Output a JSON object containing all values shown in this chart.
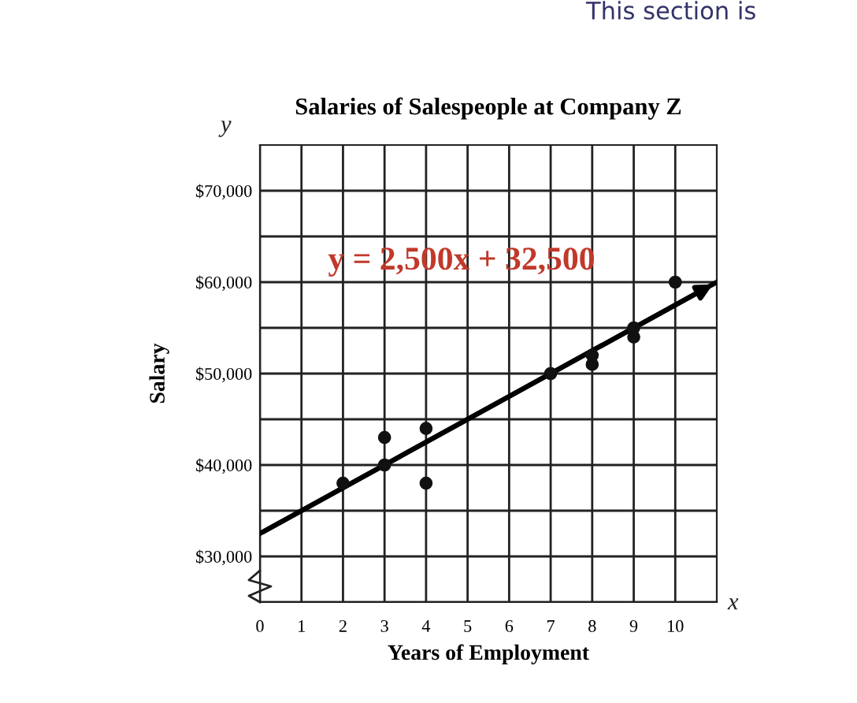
{
  "chart_data": {
    "type": "scatter",
    "title": "Salaries of Salespeople at Company Z",
    "xlabel": "Years of Employment",
    "ylabel": "Salary",
    "annotations": [
      "y = 2,500x + 32,500",
      "y",
      "x",
      "This section is"
    ],
    "series": [
      {
        "color": "#111111",
        "x": [
          2,
          3,
          3,
          4,
          4,
          7,
          8,
          8,
          9,
          9,
          10
        ],
        "values": [
          38000,
          43000,
          40000,
          44000,
          38000,
          50000,
          52000,
          51000,
          55000,
          54000,
          60000
        ]
      },
      {
        "type": "line",
        "color": "#000000",
        "marker": "none",
        "x": [
          0,
          11
        ],
        "values": [
          32500,
          60000
        ]
      }
    ],
    "xlim": [
      0,
      11
    ],
    "ylim": [
      25000,
      75000
    ],
    "xticks": [
      {
        "value": 0,
        "label": "0"
      },
      1,
      2,
      3,
      4,
      5,
      6,
      7,
      8,
      9,
      10
    ],
    "yticks": [
      {
        "value": 25000,
        "label": null
      },
      {
        "value": 30000,
        "label": "$30,000"
      },
      {
        "value": 35000,
        "label": null
      },
      {
        "value": 40000,
        "label": "$40,000"
      },
      {
        "value": 45000,
        "label": null
      },
      {
        "value": 50000,
        "label": "$50,000"
      },
      {
        "value": 55000,
        "label": null
      },
      {
        "value": 60000,
        "label": "$60,000"
      },
      {
        "value": 65000,
        "label": null
      },
      {
        "value": 70000,
        "label": "$70,000"
      }
    ],
    "grid": true,
    "marker": "circle",
    "legend": false
  }
}
